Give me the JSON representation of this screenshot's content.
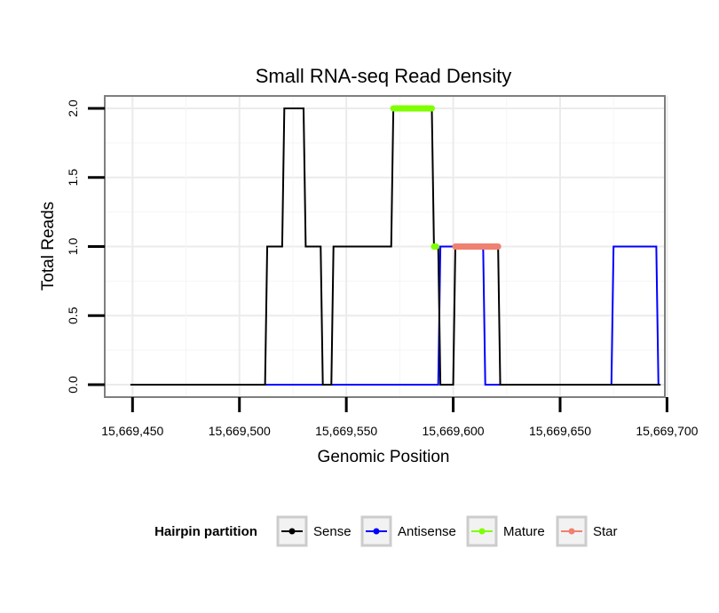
{
  "chart_data": {
    "type": "line",
    "title": "Small RNA-seq Read Density",
    "xlabel": "Genomic Position",
    "ylabel": "Total Reads",
    "xlim": [
      15669437,
      15669699
    ],
    "ylim": [
      -0.09,
      2.09
    ],
    "x_ticks": [
      15669450,
      15669500,
      15669550,
      15669600,
      15669650,
      15669700
    ],
    "x_tick_labels": [
      "15,669,450",
      "15,669,500",
      "15,669,550",
      "15,669,600",
      "15,669,650",
      "15,669,700"
    ],
    "y_ticks": [
      0,
      0.5,
      1,
      1.5,
      2
    ],
    "y_tick_labels": [
      "0.0",
      "0.5",
      "1.0",
      "1.5",
      "2.0"
    ],
    "grid": true,
    "legend": {
      "title": "Hairpin partition",
      "position": "bottom",
      "entries": [
        {
          "name": "Sense",
          "color": "#000000"
        },
        {
          "name": "Antisense",
          "color": "#0000ff"
        },
        {
          "name": "Mature",
          "color": "#7fff00"
        },
        {
          "name": "Star",
          "color": "#f08070"
        }
      ]
    },
    "series": [
      {
        "name": "Sense",
        "color": "#000000",
        "points": [
          [
            15669449,
            0
          ],
          [
            15669512,
            0
          ],
          [
            15669513,
            1
          ],
          [
            15669520,
            1
          ],
          [
            15669521,
            2
          ],
          [
            15669530,
            2
          ],
          [
            15669531,
            1
          ],
          [
            15669538,
            1
          ],
          [
            15669539,
            0
          ],
          [
            15669543,
            0
          ],
          [
            15669544,
            1
          ],
          [
            15669571,
            1
          ],
          [
            15669572,
            2
          ],
          [
            15669590,
            2
          ],
          [
            15669591,
            1
          ],
          [
            15669593,
            1
          ],
          [
            15669594,
            0
          ],
          [
            15669600,
            0
          ],
          [
            15669601,
            1
          ],
          [
            15669621,
            1
          ],
          [
            15669622,
            0
          ],
          [
            15669697,
            0
          ]
        ]
      },
      {
        "name": "Antisense",
        "color": "#0000ff",
        "points": [
          [
            15669512,
            0
          ],
          [
            15669593,
            0
          ],
          [
            15669594,
            1
          ],
          [
            15669614,
            1
          ],
          [
            15669615,
            0
          ],
          [
            15669674,
            0
          ],
          [
            15669675,
            1
          ],
          [
            15669695,
            1
          ],
          [
            15669696,
            0
          ]
        ]
      }
    ],
    "segments": [
      {
        "name": "Mature",
        "color": "#7fff00",
        "y": 2,
        "x_start": 15669572,
        "x_end": 15669590
      },
      {
        "name": "Mature",
        "color": "#7fff00",
        "y": 1,
        "x_start": 15669591,
        "x_end": 15669592
      },
      {
        "name": "Star",
        "color": "#f08070",
        "y": 1,
        "x_start": 15669601,
        "x_end": 15669621
      }
    ]
  }
}
